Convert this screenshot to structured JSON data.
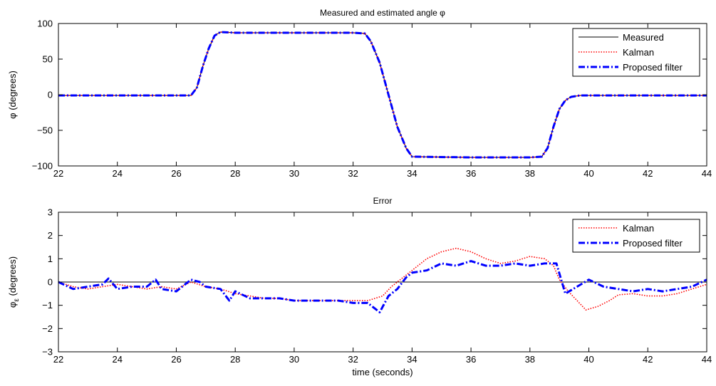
{
  "chart_data": [
    {
      "type": "line",
      "title": "Measured and estimated angle φ",
      "xlabel": "",
      "ylabel": "φ (degrees)",
      "xlim": [
        22,
        44
      ],
      "ylim": [
        -100,
        100
      ],
      "xticks": [
        22,
        24,
        26,
        28,
        30,
        32,
        34,
        36,
        38,
        40,
        42,
        44
      ],
      "yticks": [
        -100,
        -50,
        0,
        50,
        100
      ],
      "legend_position": "top-right",
      "grid": false,
      "series": [
        {
          "name": "Measured",
          "color": "#000000",
          "style": "solid",
          "x": [
            22,
            24,
            26,
            26.5,
            26.7,
            26.9,
            27.1,
            27.3,
            27.5,
            28,
            30,
            32,
            32.4,
            32.6,
            32.9,
            33.2,
            33.5,
            33.8,
            34,
            36,
            38,
            38.4,
            38.6,
            38.8,
            39,
            39.2,
            39.4,
            39.7,
            40,
            42,
            44
          ],
          "y": [
            -1,
            -1,
            -1,
            -1,
            10,
            40,
            65,
            83,
            88,
            87,
            87,
            87,
            86,
            75,
            45,
            0,
            -45,
            -75,
            -87,
            -88,
            -88,
            -87,
            -75,
            -45,
            -20,
            -8,
            -3,
            -1,
            -1,
            -1,
            -1
          ]
        },
        {
          "name": "Kalman",
          "color": "#ff0000",
          "style": "dotted",
          "x": [
            22,
            24,
            26,
            26.5,
            26.7,
            26.9,
            27.1,
            27.3,
            27.5,
            28,
            30,
            32,
            32.4,
            32.6,
            32.9,
            33.2,
            33.5,
            33.8,
            34,
            36,
            38,
            38.4,
            38.6,
            38.8,
            39,
            39.2,
            39.4,
            39.7,
            40,
            42,
            44
          ],
          "y": [
            -1,
            -1,
            -1,
            -1,
            10,
            40,
            65,
            83,
            88,
            87,
            87,
            87,
            86,
            75,
            45,
            0,
            -45,
            -75,
            -87,
            -88,
            -88,
            -87,
            -75,
            -45,
            -20,
            -8,
            -3,
            -1,
            -1,
            -1,
            -1
          ]
        },
        {
          "name": "Proposed filter",
          "color": "#0000ff",
          "style": "dashdot",
          "x": [
            22,
            24,
            26,
            26.5,
            26.7,
            26.9,
            27.1,
            27.3,
            27.5,
            28,
            30,
            32,
            32.4,
            32.6,
            32.9,
            33.2,
            33.5,
            33.8,
            34,
            36,
            38,
            38.4,
            38.6,
            38.8,
            39,
            39.2,
            39.4,
            39.7,
            40,
            42,
            44
          ],
          "y": [
            -1,
            -1,
            -1,
            -1,
            10,
            40,
            65,
            83,
            88,
            87,
            87,
            87,
            86,
            75,
            45,
            0,
            -45,
            -75,
            -87,
            -88,
            -88,
            -87,
            -75,
            -45,
            -20,
            -8,
            -3,
            -1,
            -1,
            -1,
            -1
          ]
        }
      ]
    },
    {
      "type": "line",
      "title": "Error",
      "xlabel": "time (seconds)",
      "ylabel": "φ",
      "ylabel_subscript": "ε",
      "ylabel_suffix": " (degrees)",
      "xlim": [
        22,
        44
      ],
      "ylim": [
        -3,
        3
      ],
      "xticks": [
        22,
        24,
        26,
        28,
        30,
        32,
        34,
        36,
        38,
        40,
        42,
        44
      ],
      "yticks": [
        -3,
        -2,
        -1,
        0,
        1,
        2,
        3
      ],
      "legend_position": "top-right",
      "grid": false,
      "zero_line": true,
      "series": [
        {
          "name": "Kalman",
          "color": "#ff0000",
          "style": "dotted",
          "x": [
            22,
            22.5,
            23,
            23.5,
            24,
            24.5,
            25,
            25.5,
            26,
            26.5,
            27,
            27.5,
            28,
            28.5,
            29,
            29.5,
            30,
            30.5,
            31,
            31.5,
            32,
            32.5,
            33,
            33.3,
            33.6,
            34,
            34.5,
            35,
            35.5,
            36,
            36.5,
            37,
            37.5,
            38,
            38.5,
            38.8,
            39,
            39.3,
            39.6,
            39.9,
            40.3,
            40.7,
            41,
            41.5,
            42,
            42.5,
            43,
            43.5,
            44
          ],
          "y": [
            0,
            -0.2,
            -0.3,
            -0.2,
            -0.1,
            -0.2,
            -0.3,
            -0.2,
            -0.3,
            0,
            -0.2,
            -0.3,
            -0.5,
            -0.6,
            -0.7,
            -0.7,
            -0.8,
            -0.8,
            -0.8,
            -0.8,
            -0.8,
            -0.8,
            -0.6,
            -0.2,
            0.1,
            0.5,
            1.0,
            1.3,
            1.45,
            1.3,
            1.0,
            0.8,
            0.9,
            1.1,
            1.0,
            0.7,
            0.1,
            -0.4,
            -0.8,
            -1.2,
            -1.05,
            -0.8,
            -0.55,
            -0.5,
            -0.6,
            -0.6,
            -0.5,
            -0.3,
            -0.1
          ]
        },
        {
          "name": "Proposed filter",
          "color": "#0000ff",
          "style": "dashdot",
          "x": [
            22,
            22.5,
            23,
            23.5,
            23.7,
            24,
            24.5,
            25,
            25.3,
            25.5,
            26,
            26.5,
            26.8,
            27,
            27.5,
            27.8,
            28,
            28.5,
            29,
            29.5,
            30,
            30.5,
            31,
            31.5,
            32,
            32.5,
            32.9,
            33.2,
            33.5,
            33.8,
            34,
            34.5,
            35,
            35.5,
            36,
            36.5,
            37,
            37.5,
            38,
            38.5,
            38.9,
            39.2,
            39.6,
            40,
            40.5,
            41,
            41.5,
            42,
            42.5,
            43,
            43.5,
            44
          ],
          "y": [
            0,
            -0.3,
            -0.2,
            -0.1,
            0.15,
            -0.3,
            -0.2,
            -0.2,
            0.1,
            -0.3,
            -0.4,
            0.1,
            0,
            -0.2,
            -0.3,
            -0.8,
            -0.4,
            -0.7,
            -0.7,
            -0.7,
            -0.8,
            -0.8,
            -0.8,
            -0.8,
            -0.9,
            -0.9,
            -1.3,
            -0.6,
            -0.3,
            0.2,
            0.4,
            0.5,
            0.8,
            0.7,
            0.9,
            0.7,
            0.7,
            0.8,
            0.7,
            0.8,
            0.8,
            -0.5,
            -0.2,
            0.1,
            -0.2,
            -0.3,
            -0.4,
            -0.3,
            -0.4,
            -0.3,
            -0.2,
            0.1
          ]
        }
      ]
    }
  ]
}
